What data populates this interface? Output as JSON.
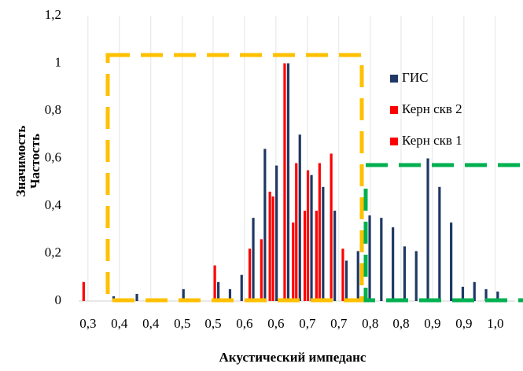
{
  "chart_data": {
    "type": "bar",
    "x_label": "Акустический импеданс",
    "y_labels": [
      "Значимость",
      "Частость"
    ],
    "x": [
      0.3,
      0.32,
      0.34,
      0.36,
      0.38,
      0.4,
      0.42,
      0.44,
      0.46,
      0.48,
      0.5,
      0.52,
      0.54,
      0.56,
      0.58,
      0.6,
      0.62,
      0.64,
      0.66,
      0.68,
      0.7,
      0.72,
      0.74,
      0.76,
      0.78,
      0.8,
      0.82,
      0.84,
      0.86,
      0.88,
      0.9,
      0.92,
      0.94,
      0.96,
      0.98,
      1.0
    ],
    "series": [
      {
        "name": "ГИС",
        "color": "#1f3864",
        "values": [
          null,
          null,
          0.02,
          null,
          0.03,
          null,
          null,
          null,
          0.05,
          null,
          null,
          0.08,
          0.05,
          0.11,
          0.35,
          0.64,
          0.57,
          1.0,
          0.7,
          0.53,
          0.48,
          0.38,
          0.17,
          0.21,
          0.36,
          0.35,
          0.31,
          0.23,
          0.21,
          0.6,
          0.48,
          0.33,
          0.06,
          0.08,
          0.05,
          0.04
        ]
      },
      {
        "name": "Керн скв 2",
        "color": "#ff0000",
        "values": [
          null,
          null,
          null,
          null,
          null,
          null,
          null,
          null,
          null,
          null,
          null,
          0.15,
          null,
          null,
          0.22,
          0.26,
          0.44,
          1.0,
          0.58,
          0.55,
          0.58,
          0.62,
          0.22,
          null,
          null,
          null,
          null,
          null,
          null,
          null,
          null,
          null,
          null,
          null,
          null,
          null
        ]
      },
      {
        "name": "Керн скв 1",
        "color": "#ff0000",
        "values": [
          0.08,
          null,
          null,
          null,
          null,
          null,
          null,
          null,
          null,
          null,
          null,
          null,
          null,
          null,
          null,
          null,
          0.46,
          null,
          0.33,
          0.38,
          0.38,
          null,
          null,
          null,
          null,
          null,
          null,
          null,
          null,
          null,
          null,
          null,
          null,
          null,
          null,
          null
        ]
      }
    ],
    "xlim": [
      0.284,
      1.034
    ],
    "xticks": [
      {
        "value": 0.3,
        "label": "0,3"
      },
      {
        "value": 0.354,
        "label": "0,4"
      },
      {
        "value": 0.408,
        "label": "0,4"
      },
      {
        "value": 0.462,
        "label": "0,5"
      },
      {
        "value": 0.515,
        "label": "0,5"
      },
      {
        "value": 0.569,
        "label": "0,6"
      },
      {
        "value": 0.623,
        "label": "0,6"
      },
      {
        "value": 0.677,
        "label": "0,7"
      },
      {
        "value": 0.731,
        "label": "0,7"
      },
      {
        "value": 0.785,
        "label": "0,8"
      },
      {
        "value": 0.838,
        "label": "0,8"
      },
      {
        "value": 0.892,
        "label": "0,9"
      },
      {
        "value": 0.946,
        "label": "0,9"
      },
      {
        "value": 1.0,
        "label": "1,0"
      }
    ],
    "ylim": [
      0,
      1.2
    ],
    "yticks": [
      0,
      {
        "value": 0.2,
        "label": "0,2"
      },
      {
        "value": 0.4,
        "label": "0,4"
      },
      {
        "value": 0.6,
        "label": "0,6"
      },
      {
        "value": 0.8,
        "label": "0,8"
      },
      1,
      {
        "value": 1.2,
        "label": "1,2"
      }
    ],
    "grid": "x"
  }
}
